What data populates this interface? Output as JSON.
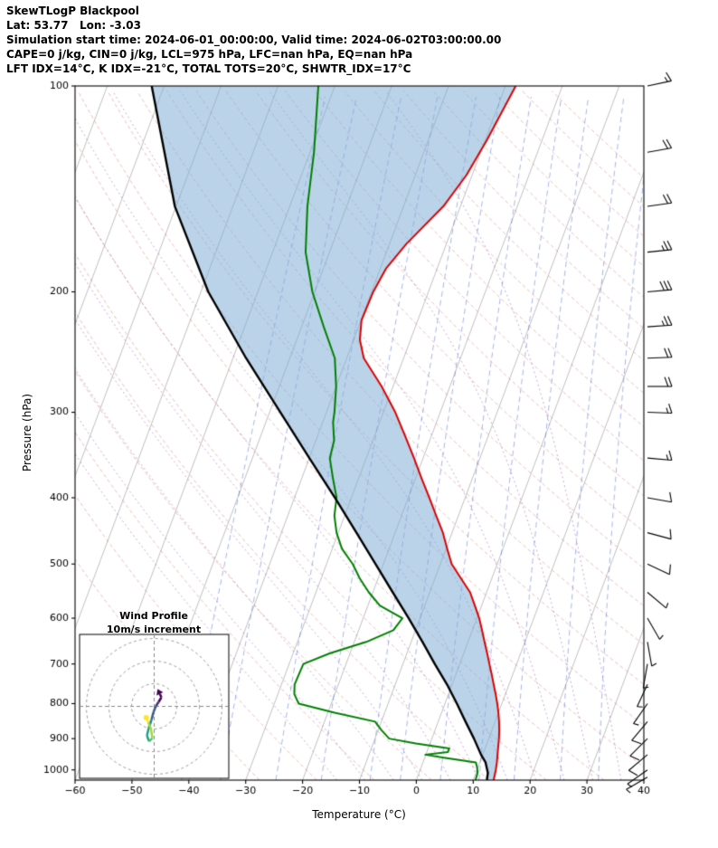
{
  "header": {
    "title": "SkewTLogP Blackpool",
    "latlon": "Lat: 53.77   Lon: -3.03",
    "sim_time": "Simulation start time: 2024-06-01_00:00:00, Valid time: 2024-06-02T03:00:00.00",
    "indices1": "CAPE=0 j/kg, CIN=0 j/kg, LCL=975 hPa, LFC=nan hPa, EQ=nan hPa",
    "indices2": "LFT IDX=14°C, K IDX=-21°C, TOTAL TOTS=20°C, SHWTR_IDX=17°C"
  },
  "hodograph": {
    "title": "Wind Profile",
    "subtitle": "10m/s increment",
    "ring_interval_ms": 10,
    "rings_ms": [
      10,
      20,
      30
    ],
    "trace_uv_ms": [
      [
        2.5,
        5.5
      ],
      [
        3.2,
        4.0
      ],
      [
        2.0,
        2.0
      ],
      [
        0.8,
        0.2
      ],
      [
        -0.3,
        -2.5
      ],
      [
        -1.2,
        -6.0
      ],
      [
        -2.4,
        -9.5
      ],
      [
        -3.2,
        -13.0
      ],
      [
        -2.2,
        -15.5
      ],
      [
        -0.8,
        -14.0
      ],
      [
        -1.4,
        -10.0
      ],
      [
        -2.6,
        -7.0
      ],
      [
        -3.5,
        -5.0
      ]
    ],
    "colormap": [
      "#440154",
      "#46327e",
      "#365c8d",
      "#277f8e",
      "#1fa187",
      "#4ac16d",
      "#a0da39",
      "#fde725"
    ]
  },
  "chart_data": {
    "type": "line",
    "subtype": "skew-t-log-p",
    "title": "SkewTLogP Blackpool",
    "xlabel": "Temperature (°C)",
    "ylabel": "Pressure (hPa)",
    "xlim": [
      -60,
      40
    ],
    "ylim": [
      1035,
      100
    ],
    "x_ticks": [
      -60,
      -50,
      -40,
      -30,
      -20,
      -10,
      0,
      10,
      20,
      30,
      40
    ],
    "y_ticks": [
      100,
      200,
      300,
      400,
      500,
      600,
      700,
      800,
      900,
      1000
    ],
    "skew_deg_per_decade": 45,
    "series": [
      {
        "name": "temperature",
        "color": "#dd0000",
        "width": 2.0,
        "points": [
          [
            1035,
            13.6
          ],
          [
            1000,
            13.3
          ],
          [
            975,
            13.0
          ],
          [
            950,
            12.6
          ],
          [
            925,
            12.2
          ],
          [
            900,
            11.8
          ],
          [
            875,
            11.3
          ],
          [
            850,
            10.7
          ],
          [
            825,
            10.0
          ],
          [
            800,
            9.2
          ],
          [
            775,
            8.3
          ],
          [
            750,
            7.3
          ],
          [
            725,
            6.3
          ],
          [
            700,
            5.2
          ],
          [
            675,
            4.1
          ],
          [
            650,
            2.9
          ],
          [
            625,
            1.7
          ],
          [
            600,
            0.4
          ],
          [
            575,
            -1.2
          ],
          [
            550,
            -2.9
          ],
          [
            525,
            -5.4
          ],
          [
            500,
            -8.0
          ],
          [
            475,
            -9.8
          ],
          [
            450,
            -11.6
          ],
          [
            425,
            -13.9
          ],
          [
            400,
            -16.3
          ],
          [
            375,
            -18.9
          ],
          [
            350,
            -21.6
          ],
          [
            325,
            -24.6
          ],
          [
            300,
            -27.9
          ],
          [
            275,
            -32.0
          ],
          [
            250,
            -37.0
          ],
          [
            235,
            -38.9
          ],
          [
            220,
            -39.9
          ],
          [
            200,
            -39.7
          ],
          [
            185,
            -39.0
          ],
          [
            170,
            -37.0
          ],
          [
            150,
            -33.0
          ],
          [
            135,
            -31.0
          ],
          [
            120,
            -29.7
          ],
          [
            100,
            -28.2
          ]
        ]
      },
      {
        "name": "dewpoint",
        "color": "#008000",
        "width": 2.0,
        "points": [
          [
            1035,
            10.4
          ],
          [
            1010,
            10.3
          ],
          [
            990,
            9.8
          ],
          [
            975,
            9.3
          ],
          [
            960,
            3.4
          ],
          [
            950,
            -0.1
          ],
          [
            942,
            3.7
          ],
          [
            930,
            3.7
          ],
          [
            915,
            -2.5
          ],
          [
            900,
            -7.5
          ],
          [
            875,
            -9.4
          ],
          [
            850,
            -11.1
          ],
          [
            825,
            -18.8
          ],
          [
            800,
            -25.7
          ],
          [
            775,
            -27.1
          ],
          [
            750,
            -27.7
          ],
          [
            725,
            -27.6
          ],
          [
            700,
            -27.5
          ],
          [
            675,
            -23.5
          ],
          [
            650,
            -17.9
          ],
          [
            625,
            -13.9
          ],
          [
            600,
            -13.1
          ],
          [
            575,
            -17.9
          ],
          [
            550,
            -20.7
          ],
          [
            525,
            -23.2
          ],
          [
            500,
            -25.4
          ],
          [
            475,
            -28.3
          ],
          [
            450,
            -30.3
          ],
          [
            425,
            -31.8
          ],
          [
            400,
            -32.6
          ],
          [
            375,
            -34.5
          ],
          [
            350,
            -36.4
          ],
          [
            330,
            -36.8
          ],
          [
            310,
            -38.2
          ],
          [
            300,
            -38.6
          ],
          [
            275,
            -40.0
          ],
          [
            250,
            -42.1
          ],
          [
            225,
            -46.1
          ],
          [
            200,
            -50.4
          ],
          [
            175,
            -54.2
          ],
          [
            150,
            -56.9
          ],
          [
            125,
            -59.3
          ],
          [
            100,
            -62.9
          ]
        ]
      },
      {
        "name": "parcel",
        "color": "#000000",
        "width": 2.4,
        "points": [
          [
            1035,
            12.4
          ],
          [
            1010,
            12.1
          ],
          [
            975,
            11.0
          ],
          [
            950,
            9.7
          ],
          [
            900,
            7.4
          ],
          [
            850,
            4.8
          ],
          [
            800,
            2.1
          ],
          [
            750,
            -0.9
          ],
          [
            700,
            -4.4
          ],
          [
            650,
            -8.0
          ],
          [
            600,
            -12.0
          ],
          [
            550,
            -16.5
          ],
          [
            500,
            -21.4
          ],
          [
            450,
            -26.8
          ],
          [
            400,
            -32.9
          ],
          [
            350,
            -40.0
          ],
          [
            300,
            -48.1
          ],
          [
            250,
            -57.7
          ],
          [
            200,
            -68.7
          ],
          [
            150,
            -80.2
          ],
          [
            100,
            -92.2
          ]
        ]
      }
    ],
    "shading": {
      "name": "negative-area",
      "between": [
        "parcel",
        "temperature"
      ],
      "color": "rgba(130,175,215,0.55)"
    },
    "background": {
      "isotherms_c": {
        "start": -110,
        "end": 40,
        "step": 10,
        "color": "rgba(125,125,125,0.55)"
      },
      "dry_adiabats_c": {
        "start": -30,
        "end": 210,
        "step": 10,
        "color": "rgba(198,96,77,0.45)"
      },
      "moist_adiabats_c": {
        "start": -15,
        "end": 35,
        "step": 5,
        "color": "rgba(138,84,173,0.55)"
      },
      "mixing_ratio_gkg": {
        "values": [
          0.1,
          0.2,
          0.5,
          1,
          2,
          3,
          5,
          8,
          12,
          20,
          30
        ],
        "color": "rgba(60,90,210,0.5)"
      }
    },
    "wind_barbs": {
      "full_barb_ms": 10,
      "levels": [
        {
          "p": 1025,
          "dir": 240,
          "spd": 6
        },
        {
          "p": 1000,
          "dir": 235,
          "spd": 6
        },
        {
          "p": 950,
          "dir": 230,
          "spd": 8
        },
        {
          "p": 900,
          "dir": 225,
          "spd": 8
        },
        {
          "p": 850,
          "dir": 220,
          "spd": 8
        },
        {
          "p": 800,
          "dir": 215,
          "spd": 6
        },
        {
          "p": 750,
          "dir": 205,
          "spd": 6
        },
        {
          "p": 700,
          "dir": 190,
          "spd": 5
        },
        {
          "p": 650,
          "dir": 170,
          "spd": 5
        },
        {
          "p": 600,
          "dir": 150,
          "spd": 6
        },
        {
          "p": 550,
          "dir": 130,
          "spd": 7
        },
        {
          "p": 500,
          "dir": 115,
          "spd": 8
        },
        {
          "p": 450,
          "dir": 105,
          "spd": 10
        },
        {
          "p": 400,
          "dir": 100,
          "spd": 12
        },
        {
          "p": 350,
          "dir": 95,
          "spd": 14
        },
        {
          "p": 300,
          "dir": 92,
          "spd": 16
        },
        {
          "p": 275,
          "dir": 90,
          "spd": 18
        },
        {
          "p": 250,
          "dir": 88,
          "spd": 22
        },
        {
          "p": 225,
          "dir": 86,
          "spd": 26
        },
        {
          "p": 200,
          "dir": 85,
          "spd": 30
        },
        {
          "p": 175,
          "dir": 84,
          "spd": 26
        },
        {
          "p": 150,
          "dir": 82,
          "spd": 22
        },
        {
          "p": 125,
          "dir": 80,
          "spd": 18
        },
        {
          "p": 100,
          "dir": 78,
          "spd": 15
        }
      ]
    }
  }
}
